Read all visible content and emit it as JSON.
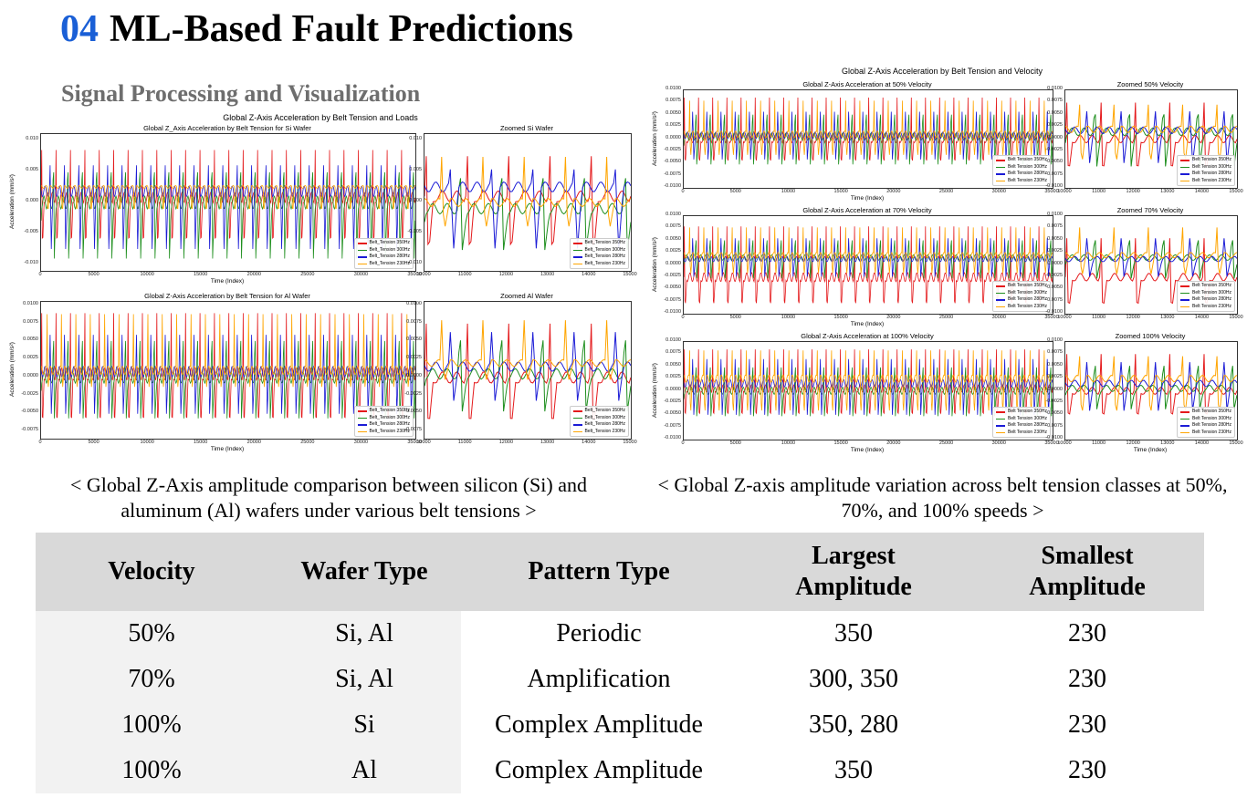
{
  "header": {
    "number": "04",
    "title": "ML-Based Fault Predictions",
    "subtitle": "Signal Processing and Visualization"
  },
  "colors": {
    "number_accent": "#1a5fd6",
    "subtitle": "#6e6e6e",
    "table_header_bg": "#d9d9d9",
    "table_first_col_bg": "#f2f2f2"
  },
  "series_colors": {
    "350": "#e41a1c",
    "300": "#1f8f1f",
    "280": "#1c1cd6",
    "230": "#ffa500"
  },
  "left_figure": {
    "suptitle": "Global Z-Axis Acceleration by Belt Tension and Loads",
    "caption": "< Global Z-Axis amplitude comparison between silicon (Si) and aluminum (Al) wafers under various belt tensions >"
  },
  "right_figure": {
    "suptitle": "Global Z-Axis Acceleration by Belt Tension and Velocity",
    "caption": "< Global Z-axis amplitude variation across belt tension classes at 50%, 70%, and 100% speeds >"
  },
  "table": {
    "headers": [
      "Velocity",
      "Wafer Type",
      "Pattern Type",
      "Largest Amplitude",
      "Smallest Amplitude"
    ],
    "rows": [
      [
        "50%",
        "Si, Al",
        "Periodic",
        "350",
        "230"
      ],
      [
        "70%",
        "Si, Al",
        "Amplification",
        "300, 350",
        "230"
      ],
      [
        "100%",
        "Si",
        "Complex Amplitude",
        "350, 280",
        "230"
      ],
      [
        "100%",
        "Al",
        "Complex Amplitude",
        "350",
        "230"
      ]
    ]
  },
  "chart_data": [
    {
      "type": "line",
      "title": "Global Z_Axis Acceleration by Belt Tension for Si Wafer",
      "xlabel": "Time (Index)",
      "ylabel": "Acceleration (mm/s²)",
      "xlim": [
        0,
        35000
      ],
      "ylim": [
        -0.011,
        0.011
      ],
      "xticks": [
        "0",
        "5000",
        "10000",
        "15000",
        "20000",
        "25000",
        "30000",
        "35000"
      ],
      "yticks": [
        "0.010",
        "0.005",
        "0.000",
        "-0.005",
        "-0.010"
      ],
      "legend_position": "bottom-right",
      "series": [
        {
          "name": "Belt_Tension 350Hz",
          "key": "350",
          "peak": 0.009,
          "trough": -0.008,
          "base": 0.0008
        },
        {
          "name": "Belt_Tension 300Hz",
          "key": "300",
          "peak": 0.011,
          "trough": -0.0095,
          "base": 0.0
        },
        {
          "name": "Belt_Tension 280Hz",
          "key": "280",
          "peak": 0.0085,
          "trough": -0.009,
          "base": 0.0018
        },
        {
          "name": "Belt_Tension 230Hz",
          "key": "230",
          "peak": 0.0025,
          "trough": -0.002,
          "base": 0.0025
        }
      ]
    },
    {
      "type": "line",
      "title": "Zoomed Si Wafer",
      "xlabel": "",
      "ylabel": "",
      "xlim": [
        10000,
        15000
      ],
      "ylim": [
        -0.011,
        0.011
      ],
      "xticks": [
        "10000",
        "11000",
        "12000",
        "13000",
        "14000",
        "15000"
      ],
      "yticks": [
        "0.010",
        "0.005",
        "0.000",
        "-0.005",
        "-0.010"
      ],
      "series": [
        {
          "name": "350",
          "key": "350",
          "peak": 0.008,
          "trough": -0.009,
          "base": 0.001
        },
        {
          "name": "300",
          "key": "300",
          "peak": 0.009,
          "trough": -0.008,
          "base": -0.001
        },
        {
          "name": "280",
          "key": "280",
          "peak": 0.007,
          "trough": -0.009,
          "base": 0.0025
        },
        {
          "name": "230",
          "key": "230",
          "peak": 0.008,
          "trough": -0.005,
          "base": 0.0
        }
      ]
    },
    {
      "type": "line",
      "title": "Global Z-Axis Acceleration by Belt Tension for Al Wafer",
      "xlabel": "Time (Index)",
      "ylabel": "Acceleration (mm/s²)",
      "xlim": [
        0,
        35000
      ],
      "ylim": [
        -0.0085,
        0.0105
      ],
      "xticks": [
        "0",
        "5000",
        "10000",
        "15000",
        "20000",
        "25000",
        "30000",
        "35000"
      ],
      "yticks": [
        "0.0100",
        "0.0075",
        "0.0050",
        "0.0025",
        "0.0000",
        "-0.0025",
        "-0.0050",
        "-0.0075"
      ],
      "legend_position": "bottom-right",
      "series": [
        {
          "name": "Belt_Tension 350Hz",
          "key": "350",
          "peak": 0.0095,
          "trough": -0.0078,
          "base": 0.0005
        },
        {
          "name": "Belt_Tension 300Hz",
          "key": "300",
          "peak": 0.0098,
          "trough": -0.006,
          "base": 0.0
        },
        {
          "name": "Belt_Tension 280Hz",
          "key": "280",
          "peak": 0.009,
          "trough": -0.006,
          "base": 0.0008
        },
        {
          "name": "Belt_Tension 230Hz",
          "key": "230",
          "peak": 0.0095,
          "trough": -0.002,
          "base": 0.001
        }
      ]
    },
    {
      "type": "line",
      "title": "Zoomed Al Wafer",
      "xlabel": "",
      "ylabel": "",
      "xlim": [
        10000,
        15000
      ],
      "ylim": [
        -0.0085,
        0.0105
      ],
      "xticks": [
        "10000",
        "11000",
        "12000",
        "13000",
        "14000",
        "15000"
      ],
      "yticks": [
        "0.0100",
        "0.0075",
        "0.0050",
        "0.0025",
        "0.0000",
        "-0.0025",
        "-0.0050",
        "-0.0075"
      ],
      "series": [
        {
          "name": "350",
          "key": "350",
          "peak": 0.008,
          "trough": -0.0078,
          "base": 0.0
        },
        {
          "name": "300",
          "key": "300",
          "peak": 0.0095,
          "trough": -0.005,
          "base": 0.0005
        },
        {
          "name": "280",
          "key": "280",
          "peak": 0.0092,
          "trough": -0.004,
          "base": 0.0015
        },
        {
          "name": "230",
          "key": "230",
          "peak": 0.0085,
          "trough": -0.001,
          "base": 0.002
        }
      ]
    },
    {
      "type": "line",
      "title": "Global Z-Axis Acceleration at 50% Velocity",
      "xlabel": "Time (Index)",
      "ylabel": "Acceleration (mm/s²)",
      "xlim": [
        0,
        35000
      ],
      "ylim": [
        -0.01,
        0.01
      ],
      "xticks": [
        "0",
        "5000",
        "10000",
        "15000",
        "20000",
        "25000",
        "30000",
        "35000"
      ],
      "yticks": [
        "0.0100",
        "0.0075",
        "0.0050",
        "0.0025",
        "0.0000",
        "-0.0025",
        "-0.0050",
        "-0.0075",
        "-0.0100"
      ],
      "legend_position": "bottom-right",
      "series": [
        {
          "name": "Belt Tension 350Hz",
          "key": "350",
          "peak": 0.009,
          "trough": -0.006,
          "base": 0.0
        },
        {
          "name": "Belt Tension 300Hz",
          "key": "300",
          "peak": 0.0095,
          "trough": -0.0055,
          "base": 0.0005
        },
        {
          "name": "Belt Tension 280Hz",
          "key": "280",
          "peak": 0.0085,
          "trough": -0.005,
          "base": 0.0008
        },
        {
          "name": "Belt Tension 230Hz",
          "key": "230",
          "peak": 0.0085,
          "trough": -0.0045,
          "base": 0.001
        }
      ]
    },
    {
      "type": "line",
      "title": "Zoomed 50% Velocity",
      "xlabel": "",
      "ylabel": "",
      "xlim": [
        10000,
        15000
      ],
      "ylim": [
        -0.01,
        0.01
      ],
      "xticks": [
        "10000",
        "11000",
        "12000",
        "13000",
        "14000",
        "15000"
      ],
      "yticks": [
        "0.0100",
        "0.0075",
        "0.0050",
        "0.0025",
        "0.0000",
        "-0.0025",
        "-0.0050",
        "-0.0075",
        "-0.0100"
      ],
      "series": [
        {
          "name": "350",
          "key": "350",
          "peak": 0.008,
          "trough": -0.0075,
          "base": 0.0
        },
        {
          "name": "300",
          "key": "300",
          "peak": 0.0098,
          "trough": -0.006,
          "base": 0.0015
        },
        {
          "name": "280",
          "key": "280",
          "peak": 0.008,
          "trough": -0.006,
          "base": 0.0018
        },
        {
          "name": "230",
          "key": "230",
          "peak": 0.0075,
          "trough": -0.006,
          "base": 0.002
        }
      ]
    },
    {
      "type": "line",
      "title": "Global Z-Axis Acceleration at 70% Velocity",
      "xlabel": "Time (Index)",
      "ylabel": "Acceleration (mm/s²)",
      "xlim": [
        0,
        35000
      ],
      "ylim": [
        -0.01,
        0.01
      ],
      "xticks": [
        "0",
        "5000",
        "10000",
        "15000",
        "20000",
        "25000",
        "30000",
        "35000"
      ],
      "yticks": [
        "0.0100",
        "0.0075",
        "0.0050",
        "0.0025",
        "0.0000",
        "-0.0025",
        "-0.0050",
        "-0.0075",
        "-0.0100"
      ],
      "legend_position": "bottom-right",
      "series": [
        {
          "name": "Belt Tension 350Hz",
          "key": "350",
          "peak": 0.0085,
          "trough": -0.0098,
          "base": -0.0025
        },
        {
          "name": "Belt Tension 300Hz",
          "key": "300",
          "peak": 0.0085,
          "trough": -0.003,
          "base": 0.0015
        },
        {
          "name": "Belt Tension 280Hz",
          "key": "280",
          "peak": 0.008,
          "trough": -0.003,
          "base": 0.0012
        },
        {
          "name": "Belt Tension 230Hz",
          "key": "230",
          "peak": 0.0082,
          "trough": -0.0028,
          "base": 0.002
        }
      ]
    },
    {
      "type": "line",
      "title": "Zoomed 70% Velocity",
      "xlabel": "",
      "ylabel": "",
      "xlim": [
        10000,
        15000
      ],
      "ylim": [
        -0.01,
        0.01
      ],
      "xticks": [
        "10000",
        "11000",
        "12000",
        "13000",
        "14000",
        "15000"
      ],
      "yticks": [
        "0.0100",
        "0.0075",
        "0.0050",
        "0.0025",
        "0.0000",
        "-0.0025",
        "-0.0050",
        "-0.0075",
        "-0.0100"
      ],
      "series": [
        {
          "name": "350",
          "key": "350",
          "peak": 0.006,
          "trough": -0.0098,
          "base": -0.0025
        },
        {
          "name": "300",
          "key": "300",
          "peak": 0.0085,
          "trough": -0.003,
          "base": 0.0015
        },
        {
          "name": "280",
          "key": "280",
          "peak": 0.008,
          "trough": -0.003,
          "base": 0.0012
        },
        {
          "name": "230",
          "key": "230",
          "peak": 0.0082,
          "trough": -0.003,
          "base": 0.002
        }
      ]
    },
    {
      "type": "line",
      "title": "Global Z-Axis Acceleration at 100% Velocity",
      "xlabel": "Time (Index)",
      "ylabel": "Acceleration (mm/s²)",
      "xlim": [
        0,
        35000
      ],
      "ylim": [
        -0.01,
        0.01
      ],
      "xticks": [
        "0",
        "5000",
        "10000",
        "15000",
        "20000",
        "25000",
        "30000",
        "35000"
      ],
      "yticks": [
        "0.0100",
        "0.0075",
        "0.0050",
        "0.0025",
        "0.0000",
        "-0.0025",
        "-0.0050",
        "-0.0075",
        "-0.0100"
      ],
      "legend_position": "bottom-right",
      "series": [
        {
          "name": "Belt Tension 350Hz",
          "key": "350",
          "peak": 0.009,
          "trough": -0.0065,
          "base": 0.0005
        },
        {
          "name": "Belt Tension 300Hz",
          "key": "300",
          "peak": 0.0092,
          "trough": -0.0055,
          "base": 0.0
        },
        {
          "name": "Belt Tension 280Hz",
          "key": "280",
          "peak": 0.0095,
          "trough": -0.006,
          "base": 0.0015
        },
        {
          "name": "Belt Tension 230Hz",
          "key": "230",
          "peak": 0.0088,
          "trough": -0.006,
          "base": 0.0025
        }
      ]
    },
    {
      "type": "line",
      "title": "Zoomed 100% Velocity",
      "xlabel": "Time (Index)",
      "ylabel": "",
      "xlim": [
        10000,
        15000
      ],
      "ylim": [
        -0.01,
        0.01
      ],
      "xticks": [
        "10000",
        "11000",
        "12000",
        "13000",
        "14000",
        "15000"
      ],
      "yticks": [
        "0.0100",
        "0.0075",
        "0.0050",
        "0.0025",
        "0.0000",
        "-0.0025",
        "-0.0050",
        "-0.0075",
        "-0.0100"
      ],
      "series": [
        {
          "name": "350",
          "key": "350",
          "peak": 0.008,
          "trough": -0.0065,
          "base": 0.0
        },
        {
          "name": "300",
          "key": "300",
          "peak": 0.009,
          "trough": -0.004,
          "base": 0.0005
        },
        {
          "name": "280",
          "key": "280",
          "peak": 0.0085,
          "trough": -0.005,
          "base": 0.0015
        },
        {
          "name": "230",
          "key": "230",
          "peak": 0.0075,
          "trough": -0.006,
          "base": 0.0025
        }
      ]
    }
  ]
}
